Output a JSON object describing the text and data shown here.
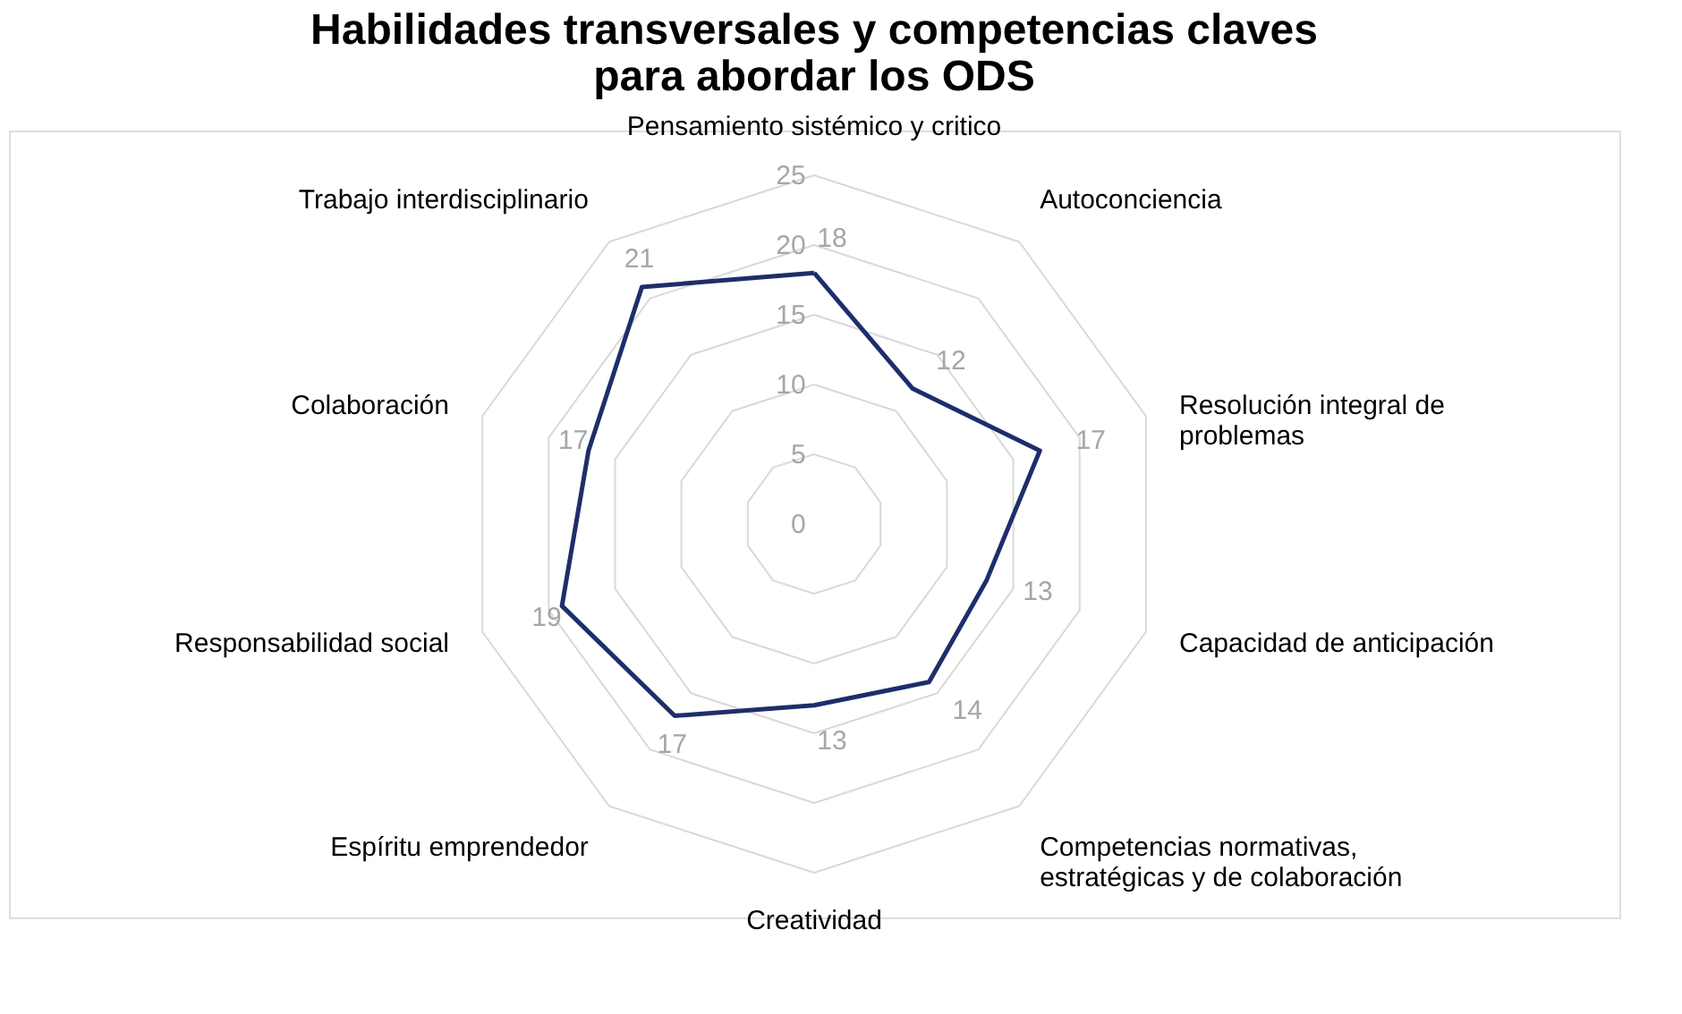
{
  "chart_data": {
    "type": "radar",
    "title": "Habilidades transversales y competencias claves\npara abordar los ODS",
    "categories": [
      "Pensamiento sistémico y critico",
      "Autoconciencia",
      "Resolución integral de\nproblemas",
      "Capacidad de anticipación",
      "Competencias normativas,\nestratégicas y de colaboración",
      "Creatividad",
      "Espíritu emprendedor",
      "Responsabilidad social",
      "Colaboración",
      "Trabajo interdisciplinario"
    ],
    "series": [
      {
        "color": "#1f2d6b",
        "values": [
          18,
          12,
          17,
          13,
          14,
          13,
          17,
          19,
          17,
          21
        ]
      }
    ],
    "ylim": [
      0,
      25
    ],
    "yticks": [
      0,
      5,
      10,
      15,
      20,
      25
    ],
    "grid": true,
    "data_labels": true
  }
}
